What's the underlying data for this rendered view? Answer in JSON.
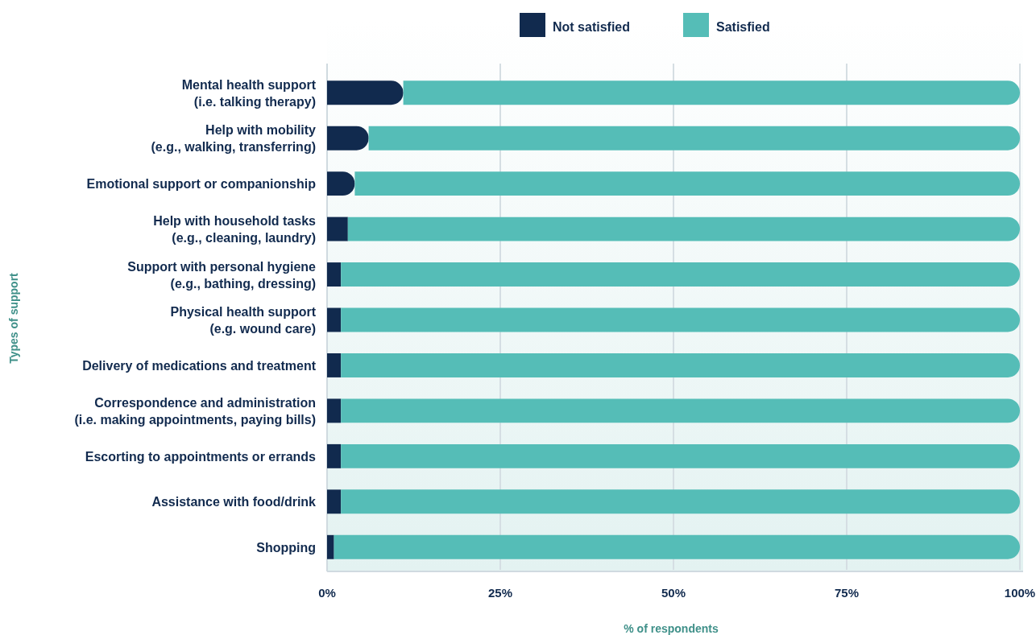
{
  "chart_data": {
    "type": "bar",
    "orientation": "horizontal",
    "stacked": true,
    "categories": [
      "Mental health support\n(i.e. talking therapy)",
      "Help with mobility\n(e.g., walking, transferring)",
      "Emotional support or companionship",
      "Help with household tasks\n(e.g., cleaning, laundry)",
      "Support with personal hygiene\n(e.g., bathing, dressing)",
      "Physical health support\n(e.g. wound care)",
      "Delivery of medications and treatment",
      "Correspondence and administration\n(i.e. making appointments, paying bills)",
      "Escorting to appointments or errands",
      "Assistance with food/drink",
      "Shopping"
    ],
    "series": [
      {
        "name": "Not satisfied",
        "color": "#112a4e",
        "values": [
          11,
          6,
          4,
          3,
          2,
          2,
          2,
          2,
          2,
          2,
          1
        ]
      },
      {
        "name": "Satisfied",
        "color": "#55bdb7",
        "values": [
          89,
          94,
          96,
          97,
          98,
          98,
          98,
          98,
          98,
          98,
          99
        ]
      }
    ],
    "xlim": [
      0,
      100
    ],
    "xticks": [
      {
        "value": 0,
        "label": "0%"
      },
      {
        "value": 25,
        "label": "25%"
      },
      {
        "value": 50,
        "label": "50%"
      },
      {
        "value": 75,
        "label": "75%"
      },
      {
        "value": 100,
        "label": "100%"
      }
    ],
    "xlabel": "% of respondents",
    "ylabel": "Types of support",
    "grid": "x",
    "legend": "top"
  }
}
